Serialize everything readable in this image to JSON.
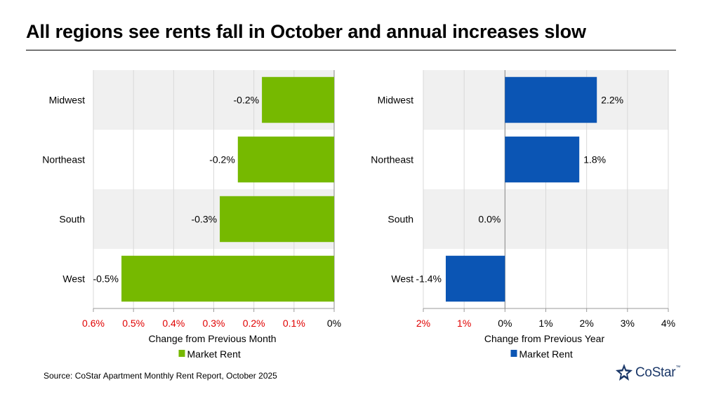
{
  "title": "All regions see rents fall in October and annual increases slow",
  "source": "Source: CoStar Apartment Monthly Rent Report, October 2025",
  "logo": {
    "text": "CoStar",
    "tm": "™",
    "icon": "costar-star-icon"
  },
  "colors": {
    "monthly_bar": "#76b900",
    "annual_bar": "#0b55b4",
    "negative_tick": "#e00000",
    "band": "#f0f0f0",
    "grid": "#d9d9d9"
  },
  "chart_data": [
    {
      "type": "bar",
      "orientation": "horizontal",
      "categories": [
        "Midwest",
        "Northeast",
        "South",
        "West"
      ],
      "series": [
        {
          "name": "Market Rent",
          "values": [
            -0.18,
            -0.24,
            -0.285,
            -0.53
          ],
          "labels": [
            "-0.2%",
            "-0.2%",
            "-0.3%",
            "-0.5%"
          ]
        }
      ],
      "xlabel": "Change from Previous Month",
      "xlim": [
        -0.6,
        0
      ],
      "xticks": [
        -0.6,
        -0.5,
        -0.4,
        -0.3,
        -0.2,
        -0.1,
        0
      ],
      "xtick_labels": [
        "0.6%",
        "0.5%",
        "0.4%",
        "0.3%",
        "0.2%",
        "0.1%",
        "0%"
      ],
      "grid": true,
      "legend": "bottom"
    },
    {
      "type": "bar",
      "orientation": "horizontal",
      "categories": [
        "Midwest",
        "Northeast",
        "South",
        "West"
      ],
      "series": [
        {
          "name": "Market Rent",
          "values": [
            2.25,
            1.82,
            0.0,
            -1.45
          ],
          "labels": [
            "2.2%",
            "1.8%",
            "0.0%",
            "-1.4%"
          ]
        }
      ],
      "xlabel": "Change from Previous Year",
      "xlim": [
        -2,
        4
      ],
      "xticks": [
        -2,
        -1,
        0,
        1,
        2,
        3,
        4
      ],
      "xtick_labels": [
        "2%",
        "1%",
        "0%",
        "1%",
        "2%",
        "3%",
        "4%"
      ],
      "grid": true,
      "legend": "bottom"
    }
  ]
}
